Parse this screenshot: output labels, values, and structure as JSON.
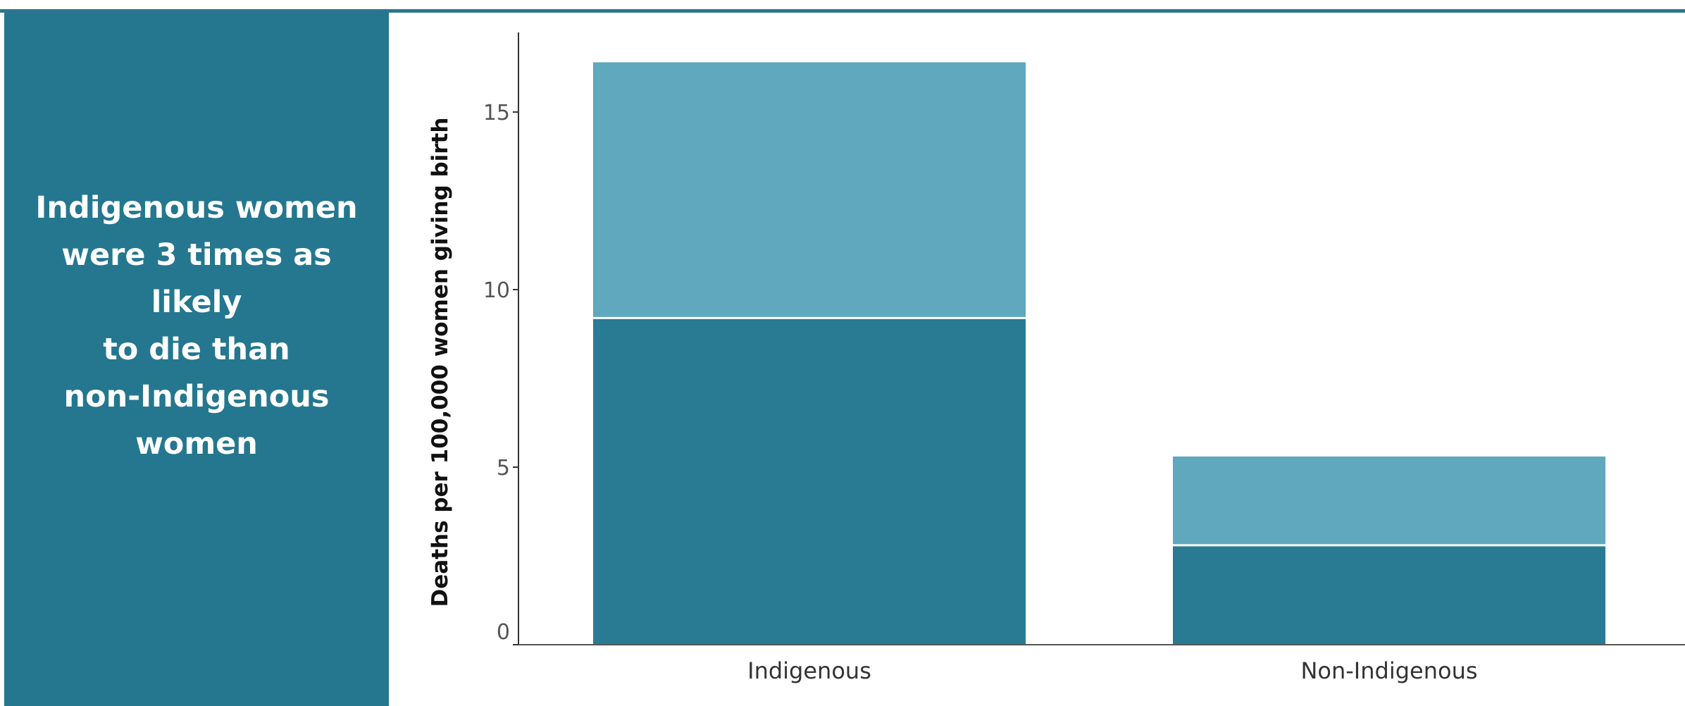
{
  "side_panel": {
    "lines": [
      "Indigenous women",
      "were 3 times as likely",
      "to die than",
      "non-Indigenous",
      "women"
    ]
  },
  "colors": {
    "panel_background": "#24778f",
    "panel_text": "#ffffff",
    "top_rule": "#2a7690",
    "series_lower": "#297b94",
    "series_upper": "#5fa8bd",
    "axis": "#555555",
    "tick_text": "#555555"
  },
  "chart_data": {
    "type": "bar",
    "stacked": true,
    "categories": [
      "Indigenous",
      "Non-Indigenous"
    ],
    "series": [
      {
        "values": [
          9.2,
          2.8
        ]
      },
      {
        "values": [
          7.2,
          2.5
        ]
      }
    ],
    "ylabel": "Deaths per 100,000 women giving birth",
    "xlabel": "",
    "ylim": [
      0,
      17
    ],
    "yticks": [
      0,
      5,
      10,
      15
    ],
    "grid": false,
    "legend": "none"
  }
}
